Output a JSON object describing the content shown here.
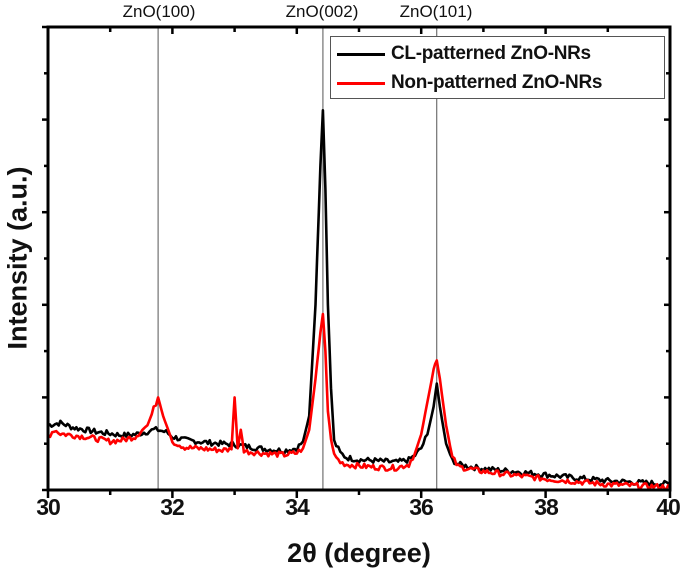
{
  "chart_data": {
    "type": "line",
    "title": "",
    "xlabel": "2θ (degree)",
    "ylabel": "Intensity (a.u.)",
    "xlim": [
      30,
      40
    ],
    "ylim": [
      0,
      100
    ],
    "x_ticks": [
      30,
      32,
      34,
      36,
      38,
      40
    ],
    "x_tick_labels": [
      "30",
      "32",
      "34",
      "36",
      "38",
      "40"
    ],
    "y_tick_labels_shown": false,
    "grid": false,
    "legend_position": "upper right",
    "annotations": [
      {
        "label": "ZnO(100)",
        "x": 31.77
      },
      {
        "label": "ZnO(002)",
        "x": 34.42
      },
      {
        "label": "ZnO(101)",
        "x": 36.25
      }
    ],
    "series": [
      {
        "name": "CL-patterned ZnO-NRs",
        "color": "#000000",
        "x": [
          30.0,
          30.2,
          30.4,
          30.6,
          30.8,
          31.0,
          31.2,
          31.4,
          31.6,
          31.7,
          31.77,
          31.9,
          32.0,
          32.2,
          32.4,
          32.6,
          32.8,
          33.0,
          33.2,
          33.4,
          33.6,
          33.8,
          34.0,
          34.1,
          34.2,
          34.3,
          34.38,
          34.42,
          34.46,
          34.5,
          34.55,
          34.6,
          34.7,
          34.8,
          35.0,
          35.2,
          35.4,
          35.6,
          35.8,
          35.9,
          36.0,
          36.1,
          36.2,
          36.25,
          36.3,
          36.4,
          36.5,
          36.6,
          36.8,
          37.0,
          37.5,
          38.0,
          38.5,
          39.0,
          39.5,
          40.0
        ],
        "y": [
          14.0,
          14.5,
          13.5,
          13.0,
          12.5,
          12.2,
          11.8,
          12.0,
          12.6,
          13.0,
          13.0,
          12.5,
          11.5,
          10.8,
          10.5,
          10.2,
          10.0,
          9.8,
          9.4,
          9.0,
          8.7,
          8.5,
          9.0,
          10.5,
          16.0,
          40.0,
          70.0,
          82.0,
          65.0,
          40.0,
          22.0,
          10.5,
          8.0,
          7.0,
          6.5,
          6.4,
          6.2,
          6.0,
          6.5,
          7.5,
          9.0,
          12.0,
          18.0,
          23.0,
          18.0,
          10.0,
          6.5,
          5.5,
          5.0,
          4.6,
          4.0,
          3.3,
          2.6,
          2.0,
          1.6,
          1.3
        ]
      },
      {
        "name": "Non-patterned ZnO-NRs",
        "color": "#ff0000",
        "x": [
          30.0,
          30.1,
          30.2,
          30.4,
          30.6,
          30.8,
          31.0,
          31.2,
          31.4,
          31.6,
          31.7,
          31.77,
          31.85,
          32.0,
          32.2,
          32.4,
          32.6,
          32.8,
          32.95,
          33.0,
          33.05,
          33.1,
          33.15,
          33.2,
          33.4,
          33.6,
          33.8,
          34.0,
          34.1,
          34.2,
          34.3,
          34.38,
          34.42,
          34.46,
          34.5,
          34.55,
          34.6,
          34.7,
          34.8,
          35.0,
          35.2,
          35.4,
          35.6,
          35.8,
          35.9,
          36.0,
          36.1,
          36.2,
          36.25,
          36.3,
          36.4,
          36.5,
          36.6,
          36.8,
          37.0,
          37.5,
          38.0,
          38.5,
          39.0,
          39.5,
          40.0
        ],
        "y": [
          11.5,
          13.0,
          12.2,
          11.8,
          11.5,
          11.0,
          10.5,
          10.8,
          11.5,
          14.0,
          17.5,
          20.0,
          16.0,
          10.5,
          9.2,
          9.0,
          8.8,
          8.6,
          8.8,
          20.0,
          9.0,
          13.0,
          8.6,
          8.3,
          8.0,
          7.8,
          7.6,
          8.0,
          9.0,
          13.0,
          24.0,
          34.0,
          38.0,
          30.0,
          17.0,
          11.0,
          7.5,
          6.0,
          5.5,
          5.2,
          5.0,
          4.8,
          4.8,
          5.5,
          8.0,
          12.0,
          19.0,
          26.0,
          28.0,
          24.0,
          14.0,
          7.0,
          5.0,
          4.5,
          4.0,
          3.2,
          2.4,
          1.8,
          1.2,
          0.9,
          0.6
        ]
      }
    ]
  },
  "plot": {
    "peak_labels": [
      {
        "label": "ZnO(100)",
        "x": 31.77
      },
      {
        "label": "ZnO(002)",
        "x": 34.42
      },
      {
        "label": "ZnO(101)",
        "x": 36.25
      }
    ],
    "xlabel": "2θ (degree)",
    "ylabel": "Intensity (a.u.)",
    "legend": [
      {
        "label": "CL-patterned ZnO-NRs",
        "color": "#000000"
      },
      {
        "label": "Non-patterned ZnO-NRs",
        "color": "#ff0000"
      }
    ],
    "x_tick_labels": [
      "30",
      "32",
      "34",
      "36",
      "38",
      "40"
    ]
  }
}
